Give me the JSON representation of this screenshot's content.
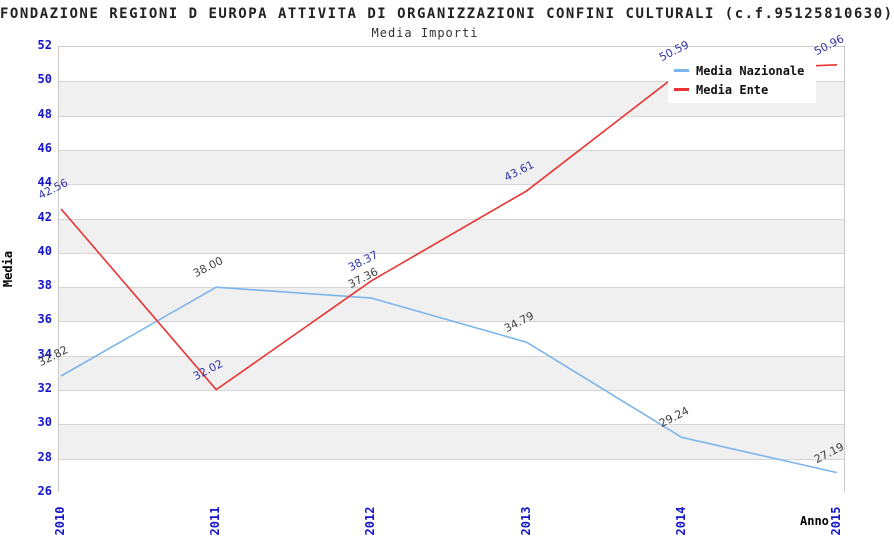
{
  "header": {
    "title": "FONDAZIONE REGIONI D EUROPA ATTIVITA DI ORGANIZZAZIONI CONFINI CULTURALI (c.f.95125810630)",
    "subtitle": "Media Importi"
  },
  "axes": {
    "y_title": "Media",
    "x_title": "Anno",
    "y_tick_labels": [
      "26",
      "28",
      "30",
      "32",
      "34",
      "36",
      "38",
      "40",
      "42",
      "44",
      "46",
      "48",
      "50",
      "52"
    ],
    "x_tick_labels": [
      "2010",
      "2011",
      "2012",
      "2013",
      "2014",
      "2015"
    ]
  },
  "chart_data": {
    "type": "line",
    "title": "FONDAZIONE REGIONI D EUROPA ATTIVITA DI ORGANIZZAZIONI CONFINI CULTURALI (c.f.95125810630)",
    "subtitle": "Media Importi",
    "categories": [
      "2010",
      "2011",
      "2012",
      "2013",
      "2014",
      "2015"
    ],
    "series": [
      {
        "name": "Media Nazionale",
        "color": "#7cb5ec",
        "label_color": "#404040",
        "values": [
          32.82,
          38.0,
          37.36,
          34.79,
          29.24,
          27.19
        ],
        "labels": [
          "32.82",
          "38.00",
          "37.36",
          "34.79",
          "29.24",
          "27.19"
        ]
      },
      {
        "name": "Media Ente",
        "color": "#e93333",
        "label_color": "#3333aa",
        "values": [
          42.56,
          32.02,
          38.37,
          43.61,
          50.59,
          50.96
        ],
        "labels": [
          "42.56",
          "32.02",
          "38.37",
          "43.61",
          "50.59",
          "50.96"
        ]
      }
    ],
    "xlabel": "Anno",
    "ylabel": "Media",
    "ylim": [
      26,
      52
    ],
    "y_tick_step": 2,
    "grid": true,
    "plot_bands_alternating": true,
    "legend_position": "top-right"
  },
  "colors": {
    "tick_label": "#1414cc",
    "axis_title": "#000000",
    "grid_line": "#d6d6d6",
    "band_fill": "#f0f0f0",
    "plot_border": "#c9c9c9",
    "background": "#ffffff"
  }
}
